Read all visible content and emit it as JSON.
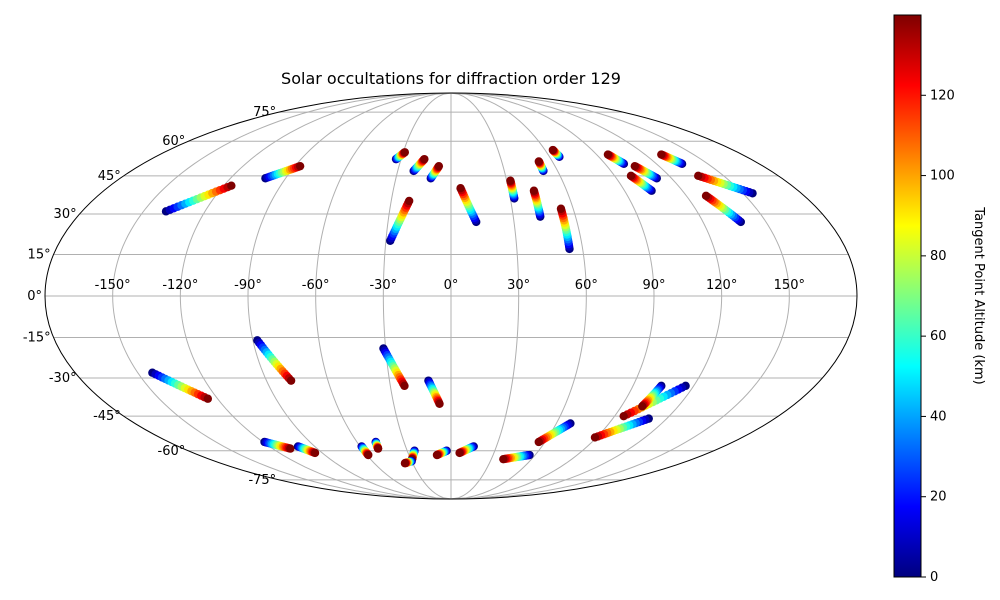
{
  "chart_data": {
    "type": "scatter",
    "projection": "mollweide",
    "title": "Solar occultations for diffraction order 129",
    "xlabel": "",
    "ylabel": "",
    "grid": true,
    "lon_ticks": [
      -150,
      -120,
      -90,
      -60,
      -30,
      0,
      30,
      60,
      90,
      120,
      150
    ],
    "lon_tick_labels": [
      "-150°",
      "-120°",
      "-90°",
      "-60°",
      "-30°",
      "0°",
      "30°",
      "60°",
      "90°",
      "120°",
      "150°"
    ],
    "lat_ticks": [
      -75,
      -60,
      -45,
      -30,
      -15,
      0,
      15,
      30,
      45,
      60,
      75
    ],
    "lat_tick_labels": [
      "-75°",
      "-60°",
      "-45°",
      "-30°",
      "-15°",
      "0°",
      "15°",
      "30°",
      "45°",
      "60°",
      "75°"
    ],
    "colorbar": {
      "label": "Tangent Point Altitude (km)",
      "min": 0,
      "max": 140,
      "ticks": [
        0,
        20,
        40,
        60,
        80,
        100,
        120
      ],
      "tick_labels": [
        "0",
        "20",
        "40",
        "60",
        "80",
        "100",
        "120"
      ],
      "colormap": "jet"
    },
    "series": [
      {
        "lon_start": -139,
        "lat_start": 31,
        "lon_end": -116,
        "lat_end": 41
      },
      {
        "lon_start": -101,
        "lat_start": 44,
        "lon_end": -87,
        "lat_end": 49
      },
      {
        "lon_start": -33,
        "lat_start": 52,
        "lon_end": -29,
        "lat_end": 55
      },
      {
        "lon_start": -21,
        "lat_start": 47,
        "lon_end": -16,
        "lat_end": 52
      },
      {
        "lon_start": -11,
        "lat_start": 44,
        "lon_end": -7,
        "lat_end": 49
      },
      {
        "lon_start": -28,
        "lat_start": 20,
        "lon_end": -21,
        "lat_end": 35
      },
      {
        "lon_start": 12,
        "lat_start": 27,
        "lon_end": 5,
        "lat_end": 40
      },
      {
        "lon_start": 32,
        "lat_start": 36,
        "lon_end": 32,
        "lat_end": 43
      },
      {
        "lon_start": 43,
        "lat_start": 29,
        "lon_end": 43,
        "lat_end": 39
      },
      {
        "lon_start": 52,
        "lat_start": 47,
        "lon_end": 52,
        "lat_end": 51
      },
      {
        "lon_start": 54,
        "lat_start": 17,
        "lon_end": 54,
        "lat_end": 32
      },
      {
        "lon_start": 66,
        "lat_start": 53,
        "lon_end": 65,
        "lat_end": 56
      },
      {
        "lon_start": 101,
        "lat_start": 50,
        "lon_end": 97,
        "lat_end": 54
      },
      {
        "lon_start": 104,
        "lat_start": 39,
        "lon_end": 99,
        "lat_end": 45
      },
      {
        "lon_start": 112,
        "lat_start": 44,
        "lon_end": 106,
        "lat_end": 49
      },
      {
        "lon_start": 135,
        "lat_start": 50,
        "lon_end": 130,
        "lat_end": 54
      },
      {
        "lon_start": 138,
        "lat_start": 27,
        "lon_end": 130,
        "lat_end": 37
      },
      {
        "lon_start": 155,
        "lat_start": 38,
        "lon_end": 136,
        "lat_end": 45
      },
      {
        "lon_start": -143,
        "lat_start": -28,
        "lon_end": -125,
        "lat_end": -38
      },
      {
        "lon_start": -88,
        "lat_start": -16,
        "lon_end": -78,
        "lat_end": -31
      },
      {
        "lon_start": -31,
        "lat_start": -19,
        "lon_end": -23,
        "lat_end": -33
      },
      {
        "lon_start": -11,
        "lat_start": -31,
        "lon_end": -6,
        "lat_end": -40
      },
      {
        "lon_start": 116,
        "lat_start": -33,
        "lon_end": 95,
        "lat_end": -45
      },
      {
        "lon_start": 104,
        "lat_start": -33,
        "lon_end": 101,
        "lat_end": -41
      },
      {
        "lon_start": 110,
        "lat_start": -46,
        "lon_end": 89,
        "lat_end": -54
      },
      {
        "lon_start": 68,
        "lat_start": -48,
        "lon_end": 56,
        "lat_end": -56
      },
      {
        "lon_start": -119,
        "lat_start": -56,
        "lon_end": -108,
        "lat_end": -59
      },
      {
        "lon_start": -101,
        "lat_start": -58,
        "lon_end": -95,
        "lat_end": -61
      },
      {
        "lon_start": -59,
        "lat_start": -58,
        "lon_end": -59,
        "lat_end": -62
      },
      {
        "lon_start": -48,
        "lat_start": -56,
        "lon_end": -49,
        "lat_end": -59
      },
      {
        "lon_start": -25,
        "lat_start": -60,
        "lon_end": -29,
        "lat_end": -64
      },
      {
        "lon_start": -30,
        "lat_start": -65,
        "lon_end": -36,
        "lat_end": -66
      },
      {
        "lon_start": -3,
        "lat_start": -60,
        "lon_end": -10,
        "lat_end": -62
      },
      {
        "lon_start": 15,
        "lat_start": -58,
        "lon_end": 6,
        "lat_end": -61
      },
      {
        "lon_start": 56,
        "lat_start": -62,
        "lon_end": 39,
        "lat_end": -64
      }
    ]
  }
}
